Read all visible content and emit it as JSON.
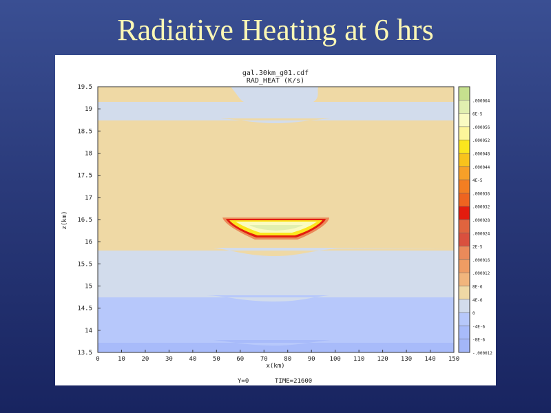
{
  "slide": {
    "title": "Radiative Heating at 6 hrs"
  },
  "plot": {
    "header_line1": "gal.30km_g01.cdf",
    "header_line2": "RAD_HEAT (K/s)",
    "footer_y": "Y=0",
    "footer_time": "TIME=21600"
  },
  "chart_data": {
    "type": "heatmap",
    "title": "gal.30km_g01.cdf",
    "subtitle": "RAD_HEAT (K/s)",
    "xlabel": "x(km)",
    "ylabel": "z(km)",
    "xlim": [
      0,
      150
    ],
    "ylim": [
      13.5,
      19.5
    ],
    "x_ticks": [
      "0",
      "10",
      "20",
      "30",
      "40",
      "50",
      "60",
      "70",
      "80",
      "90",
      "100",
      "110",
      "120",
      "130",
      "140",
      "150"
    ],
    "y_ticks": [
      "13.5",
      "14",
      "14.5",
      "15",
      "15.5",
      "16",
      "16.5",
      "17",
      "17.5",
      "18",
      "18.5",
      "19",
      "19.5"
    ],
    "colorbar": [
      {
        "label": "-.000012",
        "color": "#a3b6f8"
      },
      {
        "label": "-8E-6",
        "color": "#a8bbfa"
      },
      {
        "label": "-4E-6",
        "color": "#b7c8fb"
      },
      {
        "label": "0",
        "color": "#d2dcec"
      },
      {
        "label": "4E-6",
        "color": "#efd9a5"
      },
      {
        "label": "8E-6",
        "color": "#f1b57c"
      },
      {
        "label": ".000012",
        "color": "#ef9c63"
      },
      {
        "label": ".000016",
        "color": "#ea8a5a"
      },
      {
        "label": "2E-5",
        "color": "#d9503e"
      },
      {
        "label": ".000024",
        "color": "#e0643e"
      },
      {
        "label": ".000028",
        "color": "#e31c0e"
      },
      {
        "label": ".000032",
        "color": "#ee6420"
      },
      {
        "label": ".000036",
        "color": "#f37e22"
      },
      {
        "label": "4E-5",
        "color": "#f7a028"
      },
      {
        "label": ".000044",
        "color": "#f8c31c"
      },
      {
        "label": ".000048",
        "color": "#fbe61e"
      },
      {
        "label": ".000052",
        "color": "#fdf59a"
      },
      {
        "label": ".000056",
        "color": "#fafbc2"
      },
      {
        "label": "6E-5",
        "color": "#e1efb0"
      },
      {
        "label": ".000064",
        "color": "#c6e08e"
      }
    ],
    "footer": "Y=0    TIME=21600"
  }
}
